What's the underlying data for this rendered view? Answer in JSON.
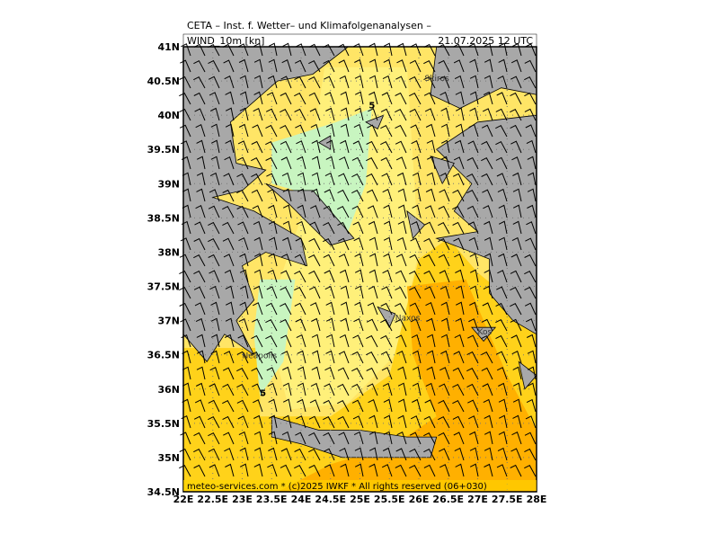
{
  "header": {
    "title": "CETA – Inst. f. Wetter– und Klimafolgenanalysen –",
    "variable": "WIND_10m [kn]",
    "valid": "21.07.2025 12 UTC"
  },
  "map": {
    "xlim": [
      22,
      28
    ],
    "ylim": [
      34.5,
      41
    ],
    "xticks": [
      {
        "value": 22,
        "label": "22E"
      },
      {
        "value": 22.5,
        "label": "22.5E"
      },
      {
        "value": 23,
        "label": "23E"
      },
      {
        "value": 23.5,
        "label": "23.5E"
      },
      {
        "value": 24,
        "label": "24E"
      },
      {
        "value": 24.5,
        "label": "24.5E"
      },
      {
        "value": 25,
        "label": "25E"
      },
      {
        "value": 25.5,
        "label": "25.5E"
      },
      {
        "value": 26,
        "label": "26E"
      },
      {
        "value": 26.5,
        "label": "26.5E"
      },
      {
        "value": 27,
        "label": "27E"
      },
      {
        "value": 27.5,
        "label": "27.5E"
      },
      {
        "value": 28,
        "label": "28E"
      }
    ],
    "yticks": [
      {
        "value": 34.5,
        "label": "34.5N"
      },
      {
        "value": 35,
        "label": "35N"
      },
      {
        "value": 35.5,
        "label": "35.5N"
      },
      {
        "value": 36,
        "label": "36N"
      },
      {
        "value": 36.5,
        "label": "36.5N"
      },
      {
        "value": 37,
        "label": "37N"
      },
      {
        "value": 37.5,
        "label": "37.5N"
      },
      {
        "value": 38,
        "label": "38N"
      },
      {
        "value": 38.5,
        "label": "38.5N"
      },
      {
        "value": 39,
        "label": "39N"
      },
      {
        "value": 39.5,
        "label": "39.5N"
      },
      {
        "value": 40,
        "label": "40N"
      },
      {
        "value": 40.5,
        "label": "40.5N"
      },
      {
        "value": 41,
        "label": "41N"
      }
    ],
    "places": [
      "Skiros",
      "Naxos",
      "Kos",
      "Neapolis"
    ],
    "contour_labels": [
      "5",
      "5"
    ]
  },
  "footer": "meteo-services.com * (c)2025 IWKF * All rights reserved (06+030)"
}
